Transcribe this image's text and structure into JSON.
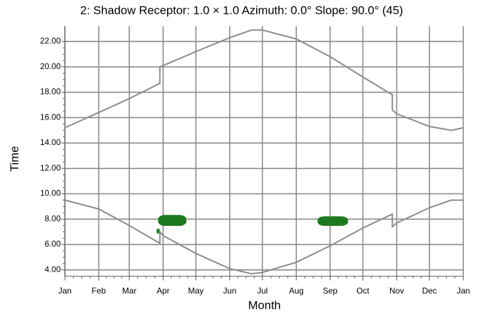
{
  "chart_data": {
    "type": "line",
    "title": "2: Shadow Receptor: 1.0 × 1.0  Azimuth: 0.0°  Slope: 90.0° (45)",
    "x_label": "Month",
    "y_label": "Time",
    "xlim": [
      0,
      365
    ],
    "xticks": [
      {
        "value": 0,
        "label": "Jan"
      },
      {
        "value": 31,
        "label": "Feb"
      },
      {
        "value": 59,
        "label": "Mar"
      },
      {
        "value": 90,
        "label": "Apr"
      },
      {
        "value": 120,
        "label": "May"
      },
      {
        "value": 151,
        "label": "Jun"
      },
      {
        "value": 181,
        "label": "Jul"
      },
      {
        "value": 212,
        "label": "Aug"
      },
      {
        "value": 243,
        "label": "Sep"
      },
      {
        "value": 273,
        "label": "Oct"
      },
      {
        "value": 304,
        "label": "Nov"
      },
      {
        "value": 334,
        "label": "Dec"
      },
      {
        "value": 365,
        "label": "Jan"
      }
    ],
    "ylim": [
      3.5,
      23.2
    ],
    "yticks": [
      {
        "value": 4,
        "label": "4.00"
      },
      {
        "value": 6,
        "label": "6.00"
      },
      {
        "value": 8,
        "label": "8.00"
      },
      {
        "value": 10,
        "label": "10.00"
      },
      {
        "value": 12,
        "label": "12.00"
      },
      {
        "value": 14,
        "label": "14.00"
      },
      {
        "value": 16,
        "label": "16.00"
      },
      {
        "value": 18,
        "label": "18.00"
      },
      {
        "value": 20,
        "label": "20.00"
      },
      {
        "value": 22,
        "label": "22.00"
      }
    ],
    "grid": true,
    "series": [
      {
        "color": "#8a8a8a",
        "x": [
          0,
          31,
          59,
          87,
          87,
          90,
          120,
          151,
          171,
          181,
          212,
          243,
          273,
          300,
          300,
          304,
          334,
          354,
          365
        ],
        "values": [
          15.2,
          16.4,
          17.5,
          18.7,
          20.0,
          20.1,
          21.2,
          22.3,
          22.9,
          22.9,
          22.2,
          20.8,
          19.2,
          17.8,
          16.6,
          16.3,
          15.3,
          15.0,
          15.2
        ]
      },
      {
        "color": "#8a8a8a",
        "x": [
          0,
          31,
          59,
          87,
          87,
          90,
          120,
          151,
          171,
          181,
          212,
          243,
          273,
          300,
          300,
          304,
          334,
          354,
          365
        ],
        "values": [
          9.5,
          8.8,
          7.5,
          6.1,
          7.0,
          6.7,
          5.3,
          4.1,
          3.7,
          3.8,
          4.6,
          5.9,
          7.3,
          8.4,
          7.4,
          7.7,
          8.9,
          9.5,
          9.5
        ]
      }
    ],
    "shadow_color": "#1e7a1e",
    "shadows": [
      {
        "x": [
          85.4,
          111.3
        ],
        "y": [
          7.47,
          8.33
        ]
      },
      {
        "x": [
          84.0,
          87.0
        ],
        "y": [
          6.87,
          7.25
        ]
      },
      {
        "x": [
          231.5,
          259.4
        ],
        "y": [
          7.47,
          8.22
        ]
      }
    ]
  }
}
